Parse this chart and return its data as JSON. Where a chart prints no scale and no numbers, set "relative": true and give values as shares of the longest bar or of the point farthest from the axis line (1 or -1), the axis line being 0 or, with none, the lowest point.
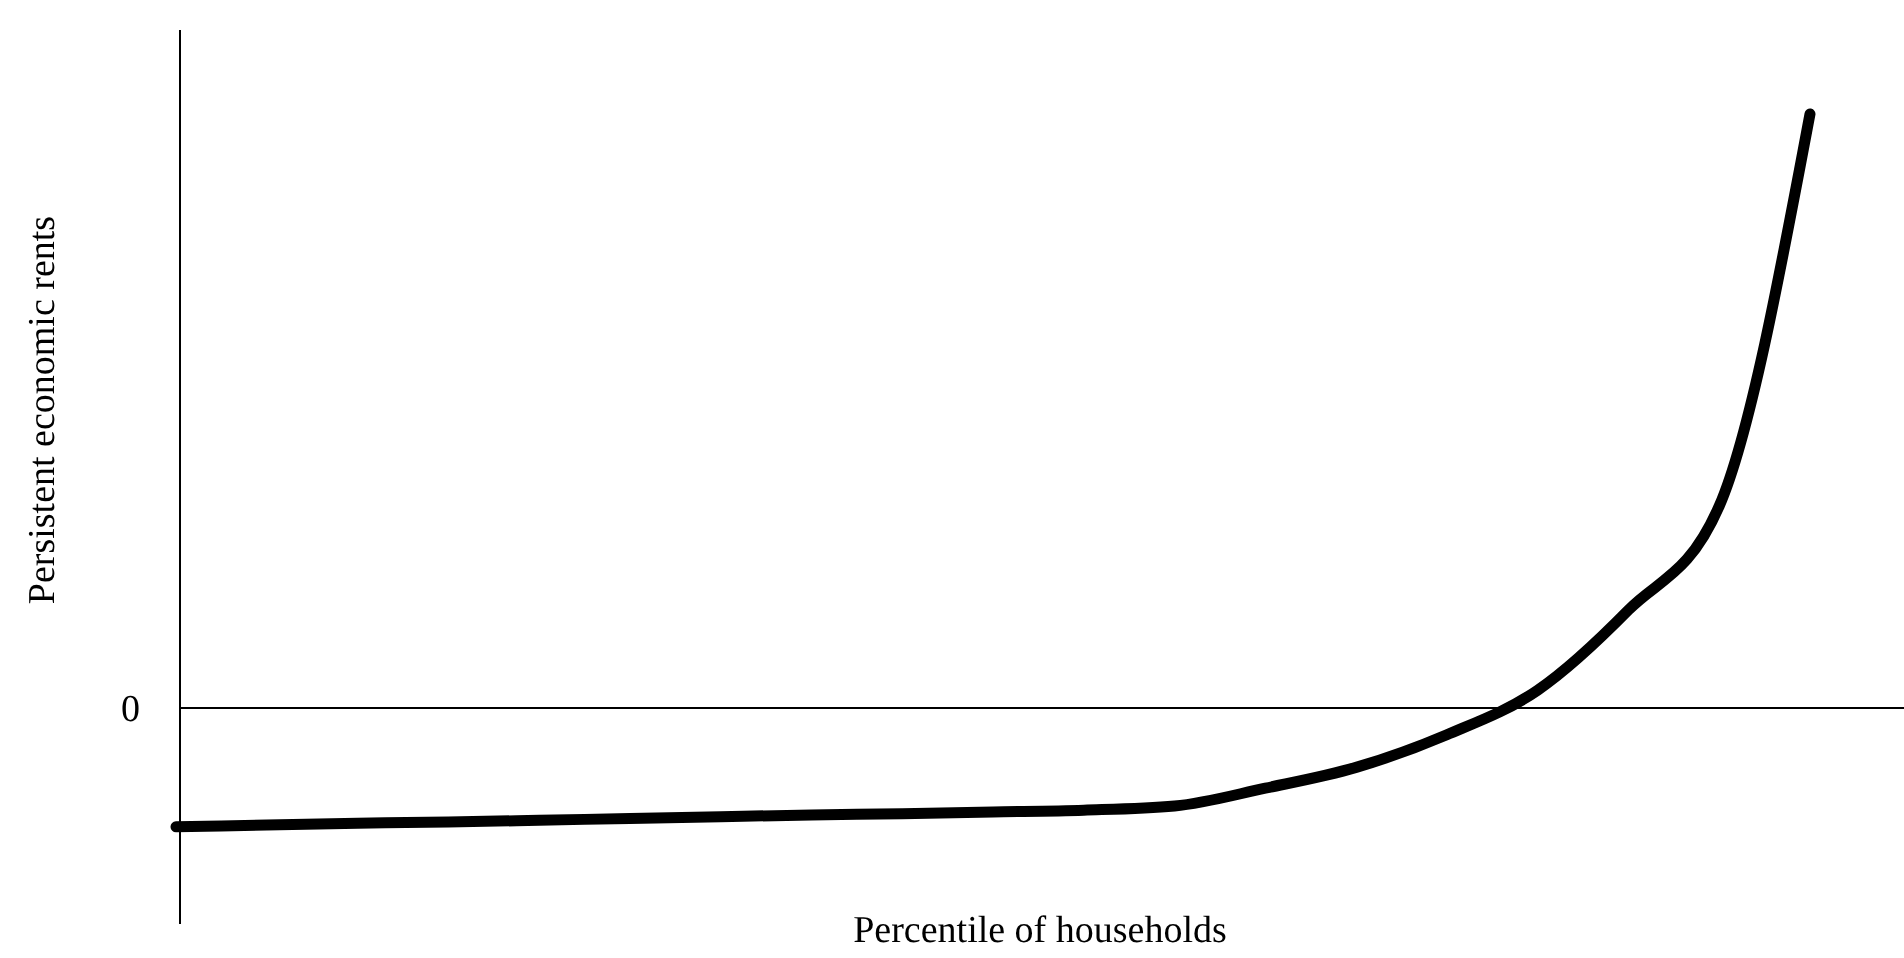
{
  "chart_data": {
    "type": "line",
    "relative": true,
    "xlabel": "Percentile of households",
    "ylabel": "Persistent economic rents",
    "categories": [
      null,
      null,
      null,
      null,
      null,
      null,
      null,
      null,
      null,
      null,
      null,
      null,
      null,
      null,
      null,
      null,
      null,
      null,
      null
    ],
    "series": [
      {
        "color": "#000000",
        "values": [
          -0.2,
          -0.197,
          -0.194,
          -0.192,
          -0.189,
          -0.186,
          -0.183,
          -0.18,
          -0.178,
          -0.175,
          -0.172,
          -0.165,
          -0.135,
          -0.1,
          -0.045,
          0.03,
          0.165,
          0.34,
          1
        ]
      }
    ],
    "ref_lines": [
      {
        "axis": "y",
        "value": 0,
        "label": "0",
        "color": "#000000"
      }
    ]
  }
}
